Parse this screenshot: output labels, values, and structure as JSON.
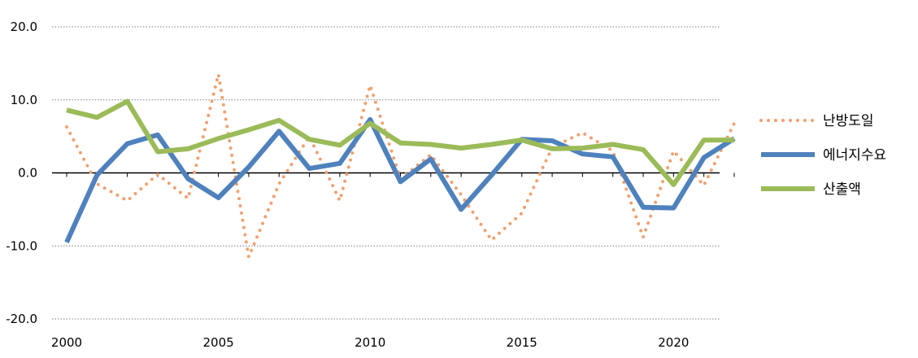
{
  "chart_data": {
    "type": "line",
    "title": "",
    "xlabel": "",
    "ylabel": "",
    "ylim": [
      -20,
      20
    ],
    "yticks": [
      20,
      10,
      0,
      -10,
      -20
    ],
    "ytick_labels": [
      "20.0",
      "10.0",
      "0.0",
      "-10.0",
      "-20.0"
    ],
    "xlim": [
      2000,
      2022
    ],
    "xticks": [
      2000,
      2005,
      2010,
      2015,
      2020
    ],
    "xtick_labels": [
      "2000",
      "2005",
      "2010",
      "2015",
      "2020"
    ],
    "grid": "horizontal dotted",
    "legend_position": "right",
    "x": [
      2000,
      2001,
      2002,
      2003,
      2004,
      2005,
      2006,
      2007,
      2008,
      2009,
      2010,
      2011,
      2012,
      2013,
      2014,
      2015,
      2016,
      2017,
      2018,
      2019,
      2020,
      2021,
      2022
    ],
    "series": [
      {
        "name": "난방도일",
        "color": "#F0A070",
        "style": "dotted",
        "values": [
          6.3,
          -1.5,
          -3.8,
          -0.2,
          -3.5,
          13.5,
          -11.5,
          -1.5,
          5.0,
          -3.8,
          12.0,
          -0.8,
          2.5,
          -3.0,
          -9.2,
          -5.5,
          3.5,
          5.5,
          3.0,
          -8.8,
          3.0,
          -1.7,
          6.8
        ]
      },
      {
        "name": "에너지수요",
        "color": "#4F81BD",
        "style": "solid",
        "values": [
          -9.5,
          -0.3,
          4.0,
          5.2,
          -0.8,
          -3.4,
          0.8,
          5.7,
          0.6,
          1.3,
          7.3,
          -1.2,
          1.9,
          -5.0,
          -0.3,
          4.6,
          4.4,
          2.6,
          2.2,
          -4.7,
          -4.8,
          2.1,
          4.7
        ]
      },
      {
        "name": "산출액",
        "color": "#9BBB59",
        "style": "solid",
        "values": [
          8.6,
          7.6,
          9.8,
          2.9,
          3.3,
          4.7,
          5.9,
          7.2,
          4.6,
          3.8,
          6.8,
          4.1,
          3.9,
          3.4,
          3.9,
          4.5,
          3.3,
          3.4,
          3.9,
          3.2,
          -1.6,
          4.5,
          4.5
        ]
      }
    ]
  }
}
